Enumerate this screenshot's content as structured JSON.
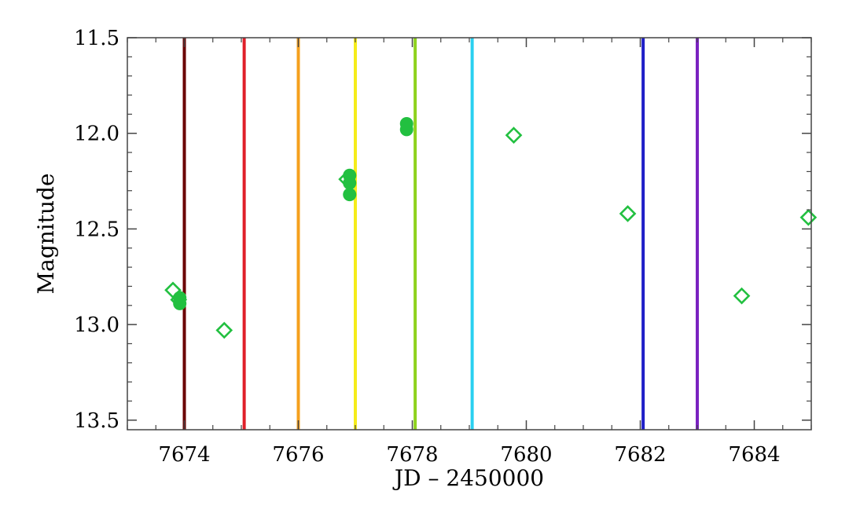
{
  "chart_data": {
    "type": "scatter",
    "title": "",
    "xlabel": "JD – 2450000",
    "ylabel": "Magnitude",
    "xlim": [
      7673.0,
      7685.0
    ],
    "ylim": [
      11.5,
      13.55
    ],
    "y_inverted": true,
    "x_ticks": [
      7674,
      7676,
      7678,
      7680,
      7682,
      7684
    ],
    "x_tick_labels": [
      "7674",
      "7676",
      "7678",
      "7680",
      "7682",
      "7684"
    ],
    "y_ticks": [
      11.5,
      12.0,
      12.5,
      13.0,
      13.5
    ],
    "y_tick_labels": [
      "11.5",
      "12.0",
      "12.5",
      "13.0",
      "13.5"
    ],
    "grid": false,
    "vertical_lines": [
      {
        "x": 7674.0,
        "color": "#6b0000"
      },
      {
        "x": 7675.05,
        "color": "#e0202a"
      },
      {
        "x": 7676.0,
        "color": "#f5a01e"
      },
      {
        "x": 7677.0,
        "color": "#f5ec1a"
      },
      {
        "x": 7678.05,
        "color": "#8ed21e"
      },
      {
        "x": 7679.05,
        "color": "#2ad0f0"
      },
      {
        "x": 7682.05,
        "color": "#1f1fc8"
      },
      {
        "x": 7683.0,
        "color": "#7a22c0"
      }
    ],
    "series": [
      {
        "marker": "diamond-open",
        "color": "#22c040",
        "points": [
          {
            "x": 7673.8,
            "y": 12.82
          },
          {
            "x": 7673.9,
            "y": 12.87
          },
          {
            "x": 7674.7,
            "y": 13.03
          },
          {
            "x": 7676.85,
            "y": 12.24
          },
          {
            "x": 7679.78,
            "y": 12.01
          },
          {
            "x": 7681.78,
            "y": 12.42
          },
          {
            "x": 7683.78,
            "y": 12.85
          },
          {
            "x": 7684.95,
            "y": 12.44
          }
        ]
      },
      {
        "marker": "circle-filled",
        "color": "#22c040",
        "points": [
          {
            "x": 7673.92,
            "y": 12.86
          },
          {
            "x": 7673.92,
            "y": 12.89
          },
          {
            "x": 7676.9,
            "y": 12.22
          },
          {
            "x": 7676.9,
            "y": 12.26
          },
          {
            "x": 7676.9,
            "y": 12.32
          },
          {
            "x": 7677.9,
            "y": 11.95
          },
          {
            "x": 7677.9,
            "y": 11.98
          }
        ]
      }
    ]
  }
}
